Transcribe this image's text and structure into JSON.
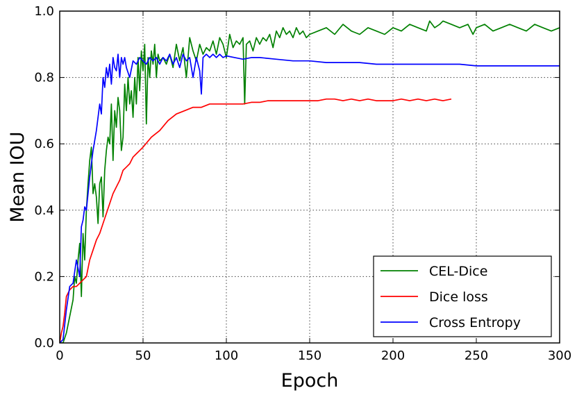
{
  "chart_data": {
    "type": "line",
    "xlabel": "Epoch",
    "ylabel": "Mean IOU",
    "xlim": [
      0,
      300
    ],
    "ylim": [
      0.0,
      1.0
    ],
    "xticks": [
      0,
      50,
      100,
      150,
      200,
      250,
      300
    ],
    "yticks": [
      0.0,
      0.2,
      0.4,
      0.6,
      0.8,
      1.0
    ],
    "xtick_labels": [
      "0",
      "50",
      "100",
      "150",
      "200",
      "250",
      "300"
    ],
    "ytick_labels": [
      "0.0",
      "0.2",
      "0.4",
      "0.6",
      "0.8",
      "1.0"
    ],
    "grid": true,
    "legend_position": "bottom-right",
    "series": [
      {
        "name": "CEL-Dice",
        "color": "#008000",
        "x": [
          0,
          2,
          4,
          6,
          8,
          9,
          10,
          11,
          12,
          13,
          14,
          15,
          16,
          17,
          18,
          19,
          20,
          21,
          22,
          23,
          24,
          25,
          26,
          27,
          28,
          29,
          30,
          31,
          32,
          33,
          34,
          35,
          36,
          37,
          38,
          39,
          40,
          41,
          42,
          43,
          44,
          45,
          46,
          47,
          48,
          49,
          50,
          51,
          52,
          53,
          54,
          55,
          56,
          57,
          58,
          59,
          60,
          62,
          64,
          66,
          68,
          70,
          72,
          74,
          76,
          78,
          80,
          82,
          84,
          86,
          88,
          90,
          92,
          94,
          96,
          98,
          100,
          102,
          104,
          106,
          108,
          110,
          111,
          112,
          114,
          116,
          118,
          120,
          122,
          124,
          126,
          128,
          130,
          132,
          134,
          136,
          138,
          140,
          142,
          144,
          146,
          148,
          150,
          155,
          160,
          165,
          170,
          175,
          180,
          185,
          190,
          195,
          200,
          205,
          210,
          215,
          220,
          222,
          225,
          228,
          230,
          235,
          240,
          245,
          248,
          250,
          255,
          260,
          265,
          270,
          275,
          280,
          285,
          290,
          295,
          300
        ],
        "y": [
          0.0,
          0.0,
          0.03,
          0.08,
          0.13,
          0.2,
          0.18,
          0.25,
          0.3,
          0.14,
          0.33,
          0.25,
          0.4,
          0.48,
          0.55,
          0.59,
          0.45,
          0.48,
          0.44,
          0.36,
          0.48,
          0.5,
          0.38,
          0.52,
          0.58,
          0.62,
          0.6,
          0.72,
          0.55,
          0.7,
          0.65,
          0.74,
          0.7,
          0.58,
          0.62,
          0.78,
          0.7,
          0.8,
          0.72,
          0.76,
          0.68,
          0.8,
          0.72,
          0.86,
          0.76,
          0.88,
          0.82,
          0.9,
          0.66,
          0.86,
          0.8,
          0.88,
          0.84,
          0.9,
          0.8,
          0.87,
          0.85,
          0.86,
          0.84,
          0.87,
          0.83,
          0.9,
          0.85,
          0.89,
          0.8,
          0.92,
          0.88,
          0.85,
          0.9,
          0.87,
          0.89,
          0.88,
          0.91,
          0.87,
          0.92,
          0.9,
          0.86,
          0.93,
          0.89,
          0.91,
          0.9,
          0.92,
          0.72,
          0.9,
          0.91,
          0.88,
          0.92,
          0.9,
          0.92,
          0.91,
          0.93,
          0.89,
          0.94,
          0.92,
          0.95,
          0.93,
          0.94,
          0.92,
          0.95,
          0.93,
          0.94,
          0.92,
          0.93,
          0.94,
          0.95,
          0.93,
          0.96,
          0.94,
          0.93,
          0.95,
          0.94,
          0.93,
          0.95,
          0.94,
          0.96,
          0.95,
          0.94,
          0.97,
          0.95,
          0.96,
          0.97,
          0.96,
          0.95,
          0.96,
          0.93,
          0.95,
          0.96,
          0.94,
          0.95,
          0.96,
          0.95,
          0.94,
          0.96,
          0.95,
          0.94,
          0.95
        ]
      },
      {
        "name": "Dice loss",
        "color": "#ff0000",
        "x": [
          0,
          1,
          2,
          3,
          4,
          5,
          6,
          8,
          10,
          12,
          14,
          16,
          18,
          20,
          22,
          24,
          26,
          28,
          30,
          32,
          34,
          36,
          38,
          40,
          42,
          44,
          46,
          48,
          50,
          55,
          60,
          65,
          70,
          75,
          80,
          85,
          90,
          95,
          100,
          105,
          110,
          115,
          120,
          125,
          130,
          135,
          140,
          145,
          150,
          155,
          160,
          165,
          170,
          175,
          180,
          185,
          190,
          195,
          200,
          205,
          210,
          215,
          220,
          225,
          230,
          235
        ],
        "y": [
          0.0,
          0.03,
          0.05,
          0.09,
          0.14,
          0.15,
          0.16,
          0.17,
          0.17,
          0.18,
          0.19,
          0.2,
          0.25,
          0.28,
          0.31,
          0.33,
          0.36,
          0.39,
          0.42,
          0.45,
          0.47,
          0.49,
          0.52,
          0.53,
          0.54,
          0.56,
          0.57,
          0.58,
          0.59,
          0.62,
          0.64,
          0.67,
          0.69,
          0.7,
          0.71,
          0.71,
          0.72,
          0.72,
          0.72,
          0.72,
          0.72,
          0.725,
          0.725,
          0.73,
          0.73,
          0.73,
          0.73,
          0.73,
          0.73,
          0.73,
          0.735,
          0.735,
          0.73,
          0.735,
          0.73,
          0.735,
          0.73,
          0.73,
          0.73,
          0.735,
          0.73,
          0.735,
          0.73,
          0.735,
          0.73,
          0.735
        ]
      },
      {
        "name": "Cross Entropy",
        "color": "#0000ff",
        "x": [
          0,
          2,
          4,
          6,
          8,
          10,
          12,
          13,
          14,
          15,
          16,
          17,
          18,
          20,
          22,
          24,
          25,
          26,
          27,
          28,
          29,
          30,
          31,
          32,
          33,
          34,
          35,
          36,
          37,
          38,
          39,
          40,
          42,
          44,
          46,
          48,
          50,
          52,
          54,
          56,
          58,
          60,
          62,
          64,
          66,
          68,
          70,
          72,
          74,
          76,
          78,
          80,
          82,
          84,
          85,
          86,
          88,
          90,
          92,
          94,
          96,
          98,
          100,
          105,
          110,
          115,
          120,
          130,
          140,
          150,
          160,
          170,
          180,
          190,
          200,
          210,
          220,
          230,
          240,
          250,
          260,
          270,
          280,
          290,
          300
        ],
        "y": [
          0.0,
          0.01,
          0.1,
          0.17,
          0.18,
          0.25,
          0.2,
          0.35,
          0.37,
          0.41,
          0.4,
          0.45,
          0.5,
          0.58,
          0.64,
          0.72,
          0.69,
          0.8,
          0.77,
          0.83,
          0.8,
          0.84,
          0.78,
          0.86,
          0.83,
          0.82,
          0.87,
          0.8,
          0.86,
          0.84,
          0.86,
          0.83,
          0.8,
          0.85,
          0.84,
          0.86,
          0.85,
          0.84,
          0.86,
          0.85,
          0.86,
          0.84,
          0.86,
          0.85,
          0.87,
          0.84,
          0.86,
          0.83,
          0.87,
          0.85,
          0.86,
          0.8,
          0.86,
          0.82,
          0.75,
          0.86,
          0.87,
          0.86,
          0.87,
          0.86,
          0.87,
          0.86,
          0.865,
          0.86,
          0.855,
          0.86,
          0.86,
          0.855,
          0.85,
          0.85,
          0.845,
          0.845,
          0.845,
          0.84,
          0.84,
          0.84,
          0.84,
          0.84,
          0.84,
          0.835,
          0.835,
          0.835,
          0.835,
          0.835,
          0.835
        ]
      }
    ]
  }
}
